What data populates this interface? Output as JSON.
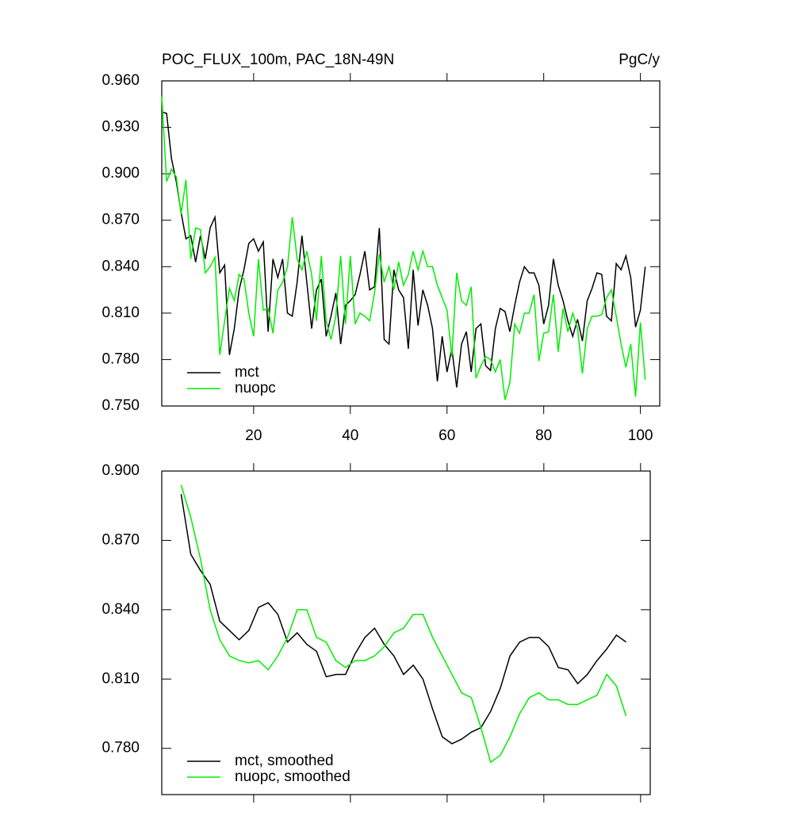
{
  "chart_data": [
    {
      "type": "line",
      "title": "POC_FLUX_100m, PAC_18N-49N",
      "units": "PgC/y",
      "x": [
        1,
        2,
        3,
        4,
        5,
        6,
        7,
        8,
        9,
        10,
        11,
        12,
        13,
        14,
        15,
        16,
        17,
        18,
        19,
        20,
        21,
        22,
        23,
        24,
        25,
        26,
        27,
        28,
        29,
        30,
        31,
        32,
        33,
        34,
        35,
        36,
        37,
        38,
        39,
        40,
        41,
        42,
        43,
        44,
        45,
        46,
        47,
        48,
        49,
        50,
        51,
        52,
        53,
        54,
        55,
        56,
        57,
        58,
        59,
        60,
        61,
        62,
        63,
        64,
        65,
        66,
        67,
        68,
        69,
        70,
        71,
        72,
        73,
        74,
        75,
        76,
        77,
        78,
        79,
        80,
        81,
        82,
        83,
        84,
        85,
        86,
        87,
        88,
        89,
        90,
        91,
        92,
        93,
        94,
        95,
        96,
        97,
        98,
        99,
        100,
        101
      ],
      "series": [
        {
          "name": "mct",
          "color": "#000000",
          "values": [
            0.94,
            0.939,
            0.91,
            0.895,
            0.875,
            0.858,
            0.86,
            0.843,
            0.86,
            0.845,
            0.865,
            0.872,
            0.836,
            0.841,
            0.783,
            0.8,
            0.825,
            0.838,
            0.855,
            0.858,
            0.85,
            0.856,
            0.798,
            0.845,
            0.833,
            0.845,
            0.81,
            0.808,
            0.83,
            0.86,
            0.83,
            0.8,
            0.825,
            0.832,
            0.795,
            0.808,
            0.823,
            0.79,
            0.815,
            0.818,
            0.822,
            0.835,
            0.85,
            0.825,
            0.827,
            0.865,
            0.793,
            0.79,
            0.838,
            0.825,
            0.82,
            0.787,
            0.838,
            0.802,
            0.825,
            0.815,
            0.8,
            0.766,
            0.795,
            0.772,
            0.787,
            0.762,
            0.79,
            0.798,
            0.772,
            0.8,
            0.803,
            0.776,
            0.773,
            0.8,
            0.813,
            0.811,
            0.798,
            0.815,
            0.83,
            0.84,
            0.836,
            0.836,
            0.828,
            0.803,
            0.815,
            0.845,
            0.828,
            0.818,
            0.805,
            0.795,
            0.806,
            0.792,
            0.818,
            0.826,
            0.836,
            0.835,
            0.808,
            0.805,
            0.842,
            0.838,
            0.847,
            0.833,
            0.801,
            0.812,
            0.84
          ]
        },
        {
          "name": "nuopc",
          "color": "#00ee00",
          "values": [
            0.95,
            0.895,
            0.903,
            0.898,
            0.874,
            0.896,
            0.845,
            0.865,
            0.864,
            0.836,
            0.84,
            0.846,
            0.783,
            0.805,
            0.826,
            0.818,
            0.835,
            0.832,
            0.81,
            0.795,
            0.845,
            0.812,
            0.813,
            0.797,
            0.825,
            0.83,
            0.84,
            0.872,
            0.845,
            0.838,
            0.85,
            0.835,
            0.805,
            0.847,
            0.805,
            0.793,
            0.808,
            0.847,
            0.803,
            0.847,
            0.803,
            0.81,
            0.808,
            0.805,
            0.823,
            0.848,
            0.83,
            0.84,
            0.825,
            0.843,
            0.828,
            0.835,
            0.85,
            0.838,
            0.85,
            0.84,
            0.84,
            0.828,
            0.82,
            0.812,
            0.782,
            0.836,
            0.818,
            0.815,
            0.827,
            0.768,
            0.776,
            0.782,
            0.78,
            0.772,
            0.78,
            0.754,
            0.765,
            0.803,
            0.797,
            0.81,
            0.81,
            0.822,
            0.779,
            0.797,
            0.798,
            0.822,
            0.785,
            0.813,
            0.798,
            0.81,
            0.8,
            0.771,
            0.8,
            0.808,
            0.808,
            0.809,
            0.82,
            0.825,
            0.808,
            0.79,
            0.775,
            0.79,
            0.756,
            0.804,
            0.767
          ]
        }
      ],
      "xlim": [
        1,
        104
      ],
      "xticks": [
        20,
        40,
        60,
        80,
        100
      ],
      "ylim": [
        0.75,
        0.96
      ],
      "yticks": [
        {
          "value": 0.75,
          "label": "0.750"
        },
        {
          "value": 0.78,
          "label": "0.780"
        },
        {
          "value": 0.81,
          "label": "0.810"
        },
        {
          "value": 0.84,
          "label": "0.840"
        },
        {
          "value": 0.87,
          "label": "0.870"
        },
        {
          "value": 0.9,
          "label": "0.900"
        },
        {
          "value": 0.93,
          "label": "0.930"
        },
        {
          "value": 0.96,
          "label": "0.960"
        }
      ],
      "legend": "lower left",
      "show_xtick_labels": true
    },
    {
      "type": "line",
      "x": [
        5,
        7,
        9,
        11,
        13,
        15,
        17,
        19,
        21,
        23,
        25,
        27,
        29,
        31,
        33,
        35,
        37,
        39,
        41,
        43,
        45,
        47,
        49,
        51,
        53,
        55,
        57,
        59,
        61,
        63,
        65,
        67,
        69,
        71,
        73,
        75,
        77,
        79,
        81,
        83,
        85,
        87,
        89,
        91,
        93,
        95,
        97
      ],
      "series": [
        {
          "name": "mct, smoothed",
          "color": "#000000",
          "values": [
            0.89,
            0.864,
            0.857,
            0.851,
            0.835,
            0.831,
            0.827,
            0.831,
            0.841,
            0.843,
            0.838,
            0.826,
            0.83,
            0.825,
            0.822,
            0.811,
            0.812,
            0.812,
            0.821,
            0.828,
            0.832,
            0.825,
            0.82,
            0.812,
            0.816,
            0.81,
            0.797,
            0.785,
            0.782,
            0.784,
            0.787,
            0.789,
            0.796,
            0.806,
            0.82,
            0.826,
            0.828,
            0.828,
            0.824,
            0.815,
            0.814,
            0.808,
            0.812,
            0.818,
            0.823,
            0.829,
            0.826
          ]
        },
        {
          "name": "nuopc, smoothed",
          "color": "#00ee00",
          "values": [
            0.894,
            0.88,
            0.862,
            0.84,
            0.827,
            0.82,
            0.818,
            0.817,
            0.818,
            0.814,
            0.82,
            0.828,
            0.84,
            0.84,
            0.828,
            0.826,
            0.818,
            0.815,
            0.818,
            0.818,
            0.82,
            0.824,
            0.83,
            0.832,
            0.838,
            0.838,
            0.828,
            0.82,
            0.812,
            0.804,
            0.802,
            0.789,
            0.774,
            0.777,
            0.785,
            0.795,
            0.802,
            0.804,
            0.801,
            0.801,
            0.799,
            0.799,
            0.801,
            0.803,
            0.812,
            0.807,
            0.794
          ]
        }
      ],
      "xlim": [
        1,
        102
      ],
      "xticks": [
        20,
        40,
        60,
        80,
        100
      ],
      "ylim": [
        0.76,
        0.9
      ],
      "yticks": [
        {
          "value": 0.78,
          "label": "0.780"
        },
        {
          "value": 0.81,
          "label": "0.810"
        },
        {
          "value": 0.84,
          "label": "0.840"
        },
        {
          "value": 0.87,
          "label": "0.870"
        },
        {
          "value": 0.9,
          "label": "0.900"
        }
      ],
      "legend": "lower left",
      "show_xtick_labels": false
    }
  ]
}
